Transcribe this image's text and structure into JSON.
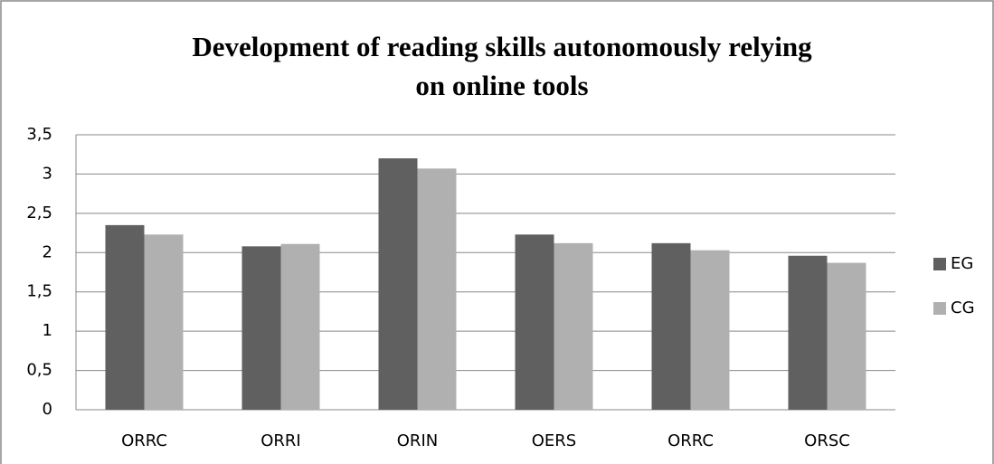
{
  "chart_data": {
    "type": "bar",
    "title": [
      "Development of reading skills autonomously relying",
      "on online tools"
    ],
    "categories": [
      "ORRC",
      "ORRI",
      "ORIN",
      "OERS",
      "ORRC",
      "ORSC"
    ],
    "series": [
      {
        "name": "EG",
        "color": "#606060",
        "values": [
          2.35,
          2.08,
          3.2,
          2.23,
          2.12,
          1.96
        ]
      },
      {
        "name": "CG",
        "color": "#b0b0b0",
        "values": [
          2.23,
          2.11,
          3.07,
          2.12,
          2.03,
          1.87
        ]
      }
    ],
    "ylim": [
      0,
      3.5
    ],
    "yticks": [
      0,
      {
        "value": 0.5,
        "label": "0,5"
      },
      1,
      {
        "value": 1.5,
        "label": "1,5"
      },
      2,
      {
        "value": 2.5,
        "label": "2,5"
      },
      3,
      {
        "value": 3.5,
        "label": "3,5"
      }
    ],
    "grid": true,
    "legend": "right"
  }
}
